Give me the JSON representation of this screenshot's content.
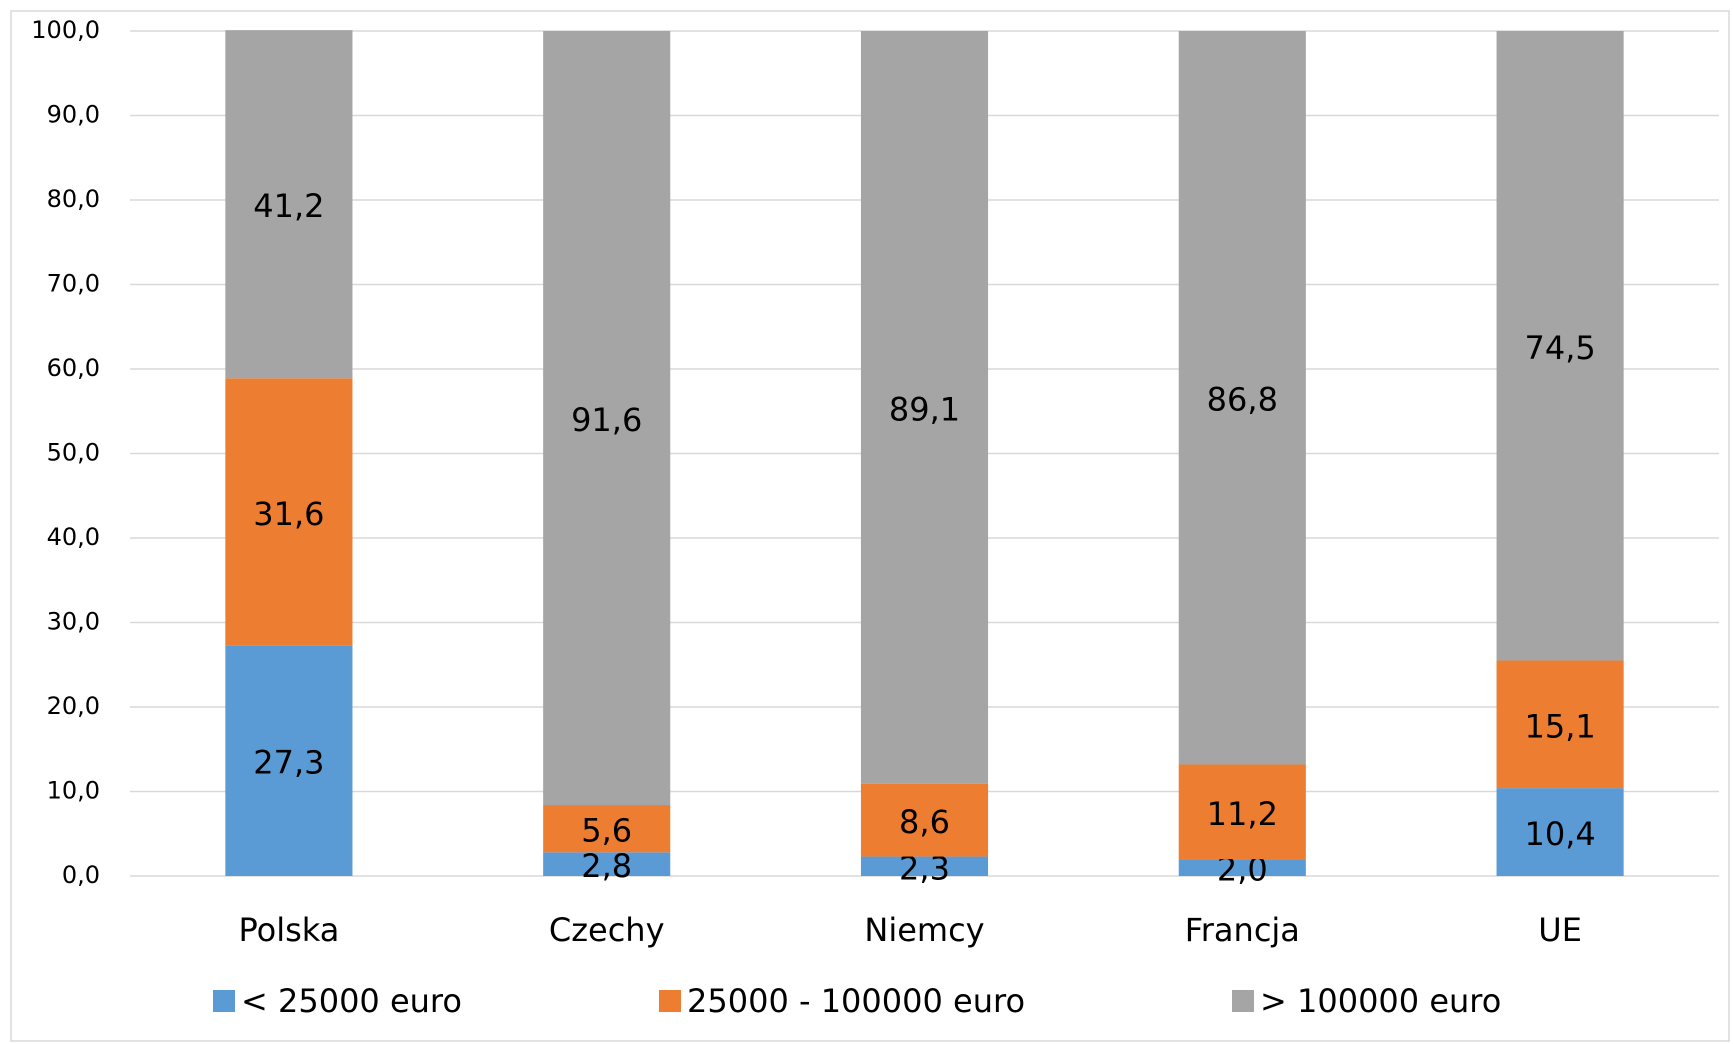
{
  "chart_data": {
    "type": "stacked_bar",
    "categories": [
      "Polska",
      "Czechy",
      "Niemcy",
      "Francja",
      "UE"
    ],
    "series": [
      {
        "name": "< 25000 euro",
        "color": "#5b9bd5",
        "values": [
          27.3,
          2.8,
          2.3,
          2.0,
          10.4
        ],
        "value_labels": [
          "27,3",
          "2,8",
          "2,3",
          "2,0",
          "10,4"
        ]
      },
      {
        "name": "25000 - 100000 euro",
        "color": "#ed7d31",
        "values": [
          31.6,
          5.6,
          8.6,
          11.2,
          15.1
        ],
        "value_labels": [
          "31,6",
          "5,6",
          "8,6",
          "11,2",
          "15,1"
        ]
      },
      {
        "name": "> 100000 euro",
        "color": "#a5a5a5",
        "values": [
          41.2,
          91.6,
          89.1,
          86.8,
          74.5
        ],
        "value_labels": [
          "41,2",
          "91,6",
          "89,1",
          "86,8",
          "74,5"
        ]
      }
    ],
    "ylim": [
      0,
      100
    ],
    "yticks": [
      {
        "value": 0,
        "label": "0,0"
      },
      {
        "value": 10,
        "label": "10,0"
      },
      {
        "value": 20,
        "label": "20,0"
      },
      {
        "value": 30,
        "label": "30,0"
      },
      {
        "value": 40,
        "label": "40,0"
      },
      {
        "value": 50,
        "label": "50,0"
      },
      {
        "value": 60,
        "label": "60,0"
      },
      {
        "value": 70,
        "label": "70,0"
      },
      {
        "value": 80,
        "label": "80,0"
      },
      {
        "value": 90,
        "label": "90,0"
      },
      {
        "value": 100,
        "label": "100,0"
      }
    ],
    "grid": true,
    "legend": "bottom"
  }
}
